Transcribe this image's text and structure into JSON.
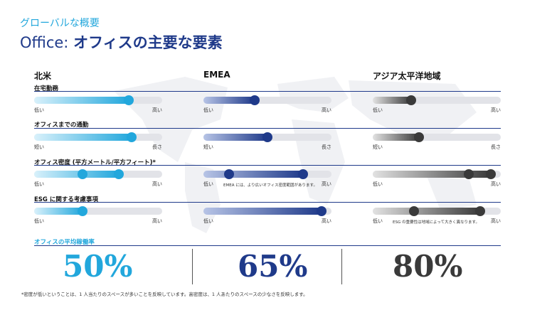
{
  "header": {
    "eyebrow": "グローバルな概要",
    "title_light": "Office: ",
    "title_bold": "オフィスの主要な要素"
  },
  "regions": [
    "北米",
    "EMEA",
    "アジア太平洋地域"
  ],
  "sections": [
    {
      "label": "在宅勤務",
      "rows": [
        {
          "low": "低い",
          "high": "高い",
          "fill": 0.74,
          "knobs": [
            0.74
          ],
          "note": ""
        },
        {
          "low": "低い",
          "high": "高い",
          "fill": 0.4,
          "knobs": [
            0.4
          ],
          "note": ""
        },
        {
          "low": "低い",
          "high": "高い",
          "fill": 0.3,
          "knobs": [
            0.3
          ],
          "note": ""
        }
      ]
    },
    {
      "label": "オフィスまでの通勤",
      "rows": [
        {
          "low": "短い",
          "high": "長さ",
          "fill": 0.76,
          "knobs": [
            0.76
          ],
          "note": ""
        },
        {
          "low": "短い",
          "high": "長さ",
          "fill": 0.5,
          "knobs": [
            0.5
          ],
          "note": ""
        },
        {
          "low": "短い",
          "high": "長さ",
          "fill": 0.36,
          "knobs": [
            0.36
          ],
          "note": ""
        }
      ]
    },
    {
      "label": "オフィス密度 (平方メートル/平方フィート)*",
      "rows": [
        {
          "low": "低い",
          "high": "高い",
          "fill": 0.66,
          "knobs": [
            0.38,
            0.66
          ],
          "note": ""
        },
        {
          "low": "低い",
          "high": "高い",
          "fill": 0.78,
          "knobs": [
            0.2,
            0.78
          ],
          "note": "EMEA には、より広いオフィス密度範囲があります。"
        },
        {
          "low": "低い",
          "high": "高い",
          "fill": 0.92,
          "knobs": [
            0.75,
            0.92
          ],
          "note": ""
        }
      ]
    },
    {
      "label": "ESG に関する考慮事項",
      "rows": [
        {
          "low": "低い",
          "high": "高い",
          "fill": 0.38,
          "knobs": [
            0.38
          ],
          "note": ""
        },
        {
          "low": "低い",
          "high": "高い",
          "fill": 0.92,
          "knobs": [
            0.92
          ],
          "note": ""
        },
        {
          "low": "低い",
          "high": "高い",
          "fill": 0.84,
          "knobs": [
            0.32,
            0.84
          ],
          "note": "ESG の重要性は地域によって大きく異なります。"
        }
      ]
    }
  ],
  "occupancy": {
    "label": "オフィスの平均稼働率",
    "values": [
      "50%",
      "65%",
      "80%"
    ]
  },
  "footnote": "*密度が低いということは、1 人当たりのスペースが多いことを反映しています。高密度は、1 人あたりのスペースの少なさを反映します。",
  "colors": {
    "na_dark": "#22a7dc",
    "na_light": "#d9f1fb",
    "emea_dark": "#1f3a8a",
    "emea_light": "#b7c4e6",
    "apac_dark": "#3a3a3a",
    "apac_light": "#e2e2e2",
    "track": "#e2e3e8"
  }
}
